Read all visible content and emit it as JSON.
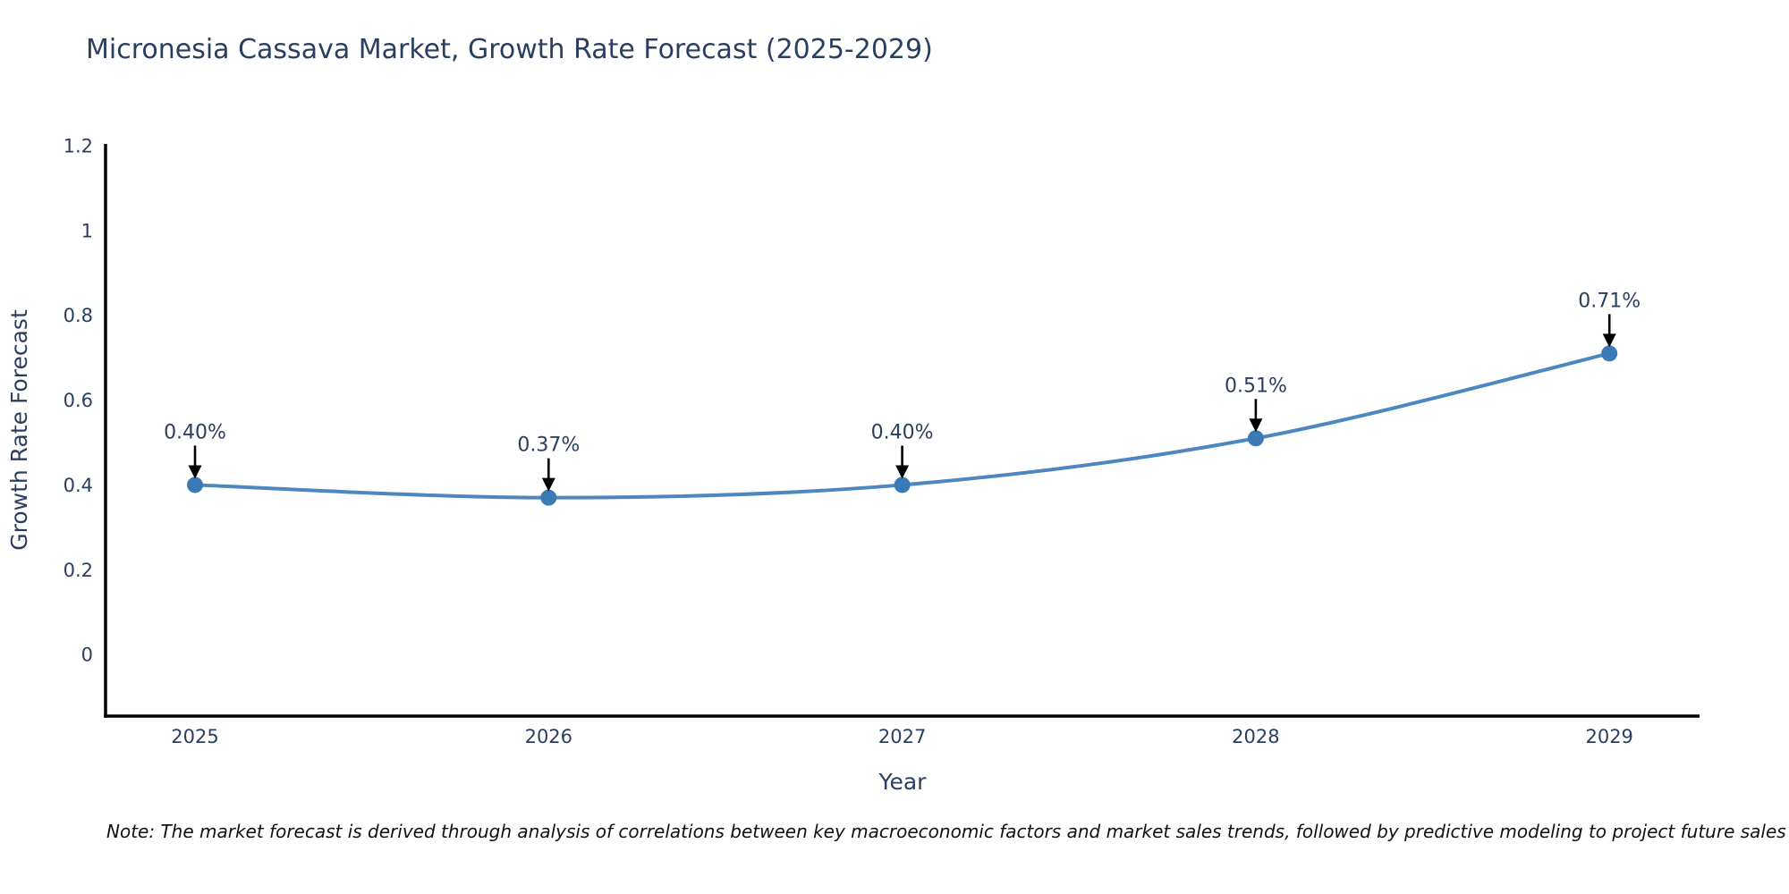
{
  "title": "Micronesia Cassava Market, Growth Rate Forecast (2025-2029)",
  "note": "Note: The market forecast is derived through analysis of correlations between key macroeconomic factors and market sales trends, followed by predictive modeling to project future sales",
  "colors": {
    "title_text": "#2a3f5f",
    "axis_text": "#2a3f5f",
    "axis_line": "#000000",
    "line": "#4d86c0",
    "marker": "#3c7ab6",
    "annotation_text": "#2a3f5f",
    "annotation_arrow": "#000000",
    "note_text": "#111111",
    "background": "#ffffff"
  },
  "chart_data": {
    "type": "line",
    "title": "Micronesia Cassava Market, Growth Rate Forecast (2025-2029)",
    "xlabel": "Year",
    "ylabel": "Growth Rate Forecast",
    "x": [
      2025,
      2026,
      2027,
      2028,
      2029
    ],
    "values": [
      0.4,
      0.37,
      0.4,
      0.51,
      0.71
    ],
    "point_labels": [
      "0.40%",
      "0.37%",
      "0.40%",
      "0.51%",
      "0.71%"
    ],
    "x_tick_labels": [
      "2025",
      "2026",
      "2027",
      "2028",
      "2029"
    ],
    "y_ticks": [
      0,
      0.2,
      0.4,
      0.6,
      0.8,
      1,
      1.2
    ],
    "y_tick_labels": [
      "0",
      "0.2",
      "0.4",
      "0.6",
      "0.8",
      "1",
      "1.2"
    ],
    "xlim": [
      2024.747,
      2029.255
    ],
    "ylim": [
      -0.145,
      1.204
    ],
    "grid": false,
    "legend": "none",
    "line_shape": "spline",
    "annotation_arrows": true
  }
}
